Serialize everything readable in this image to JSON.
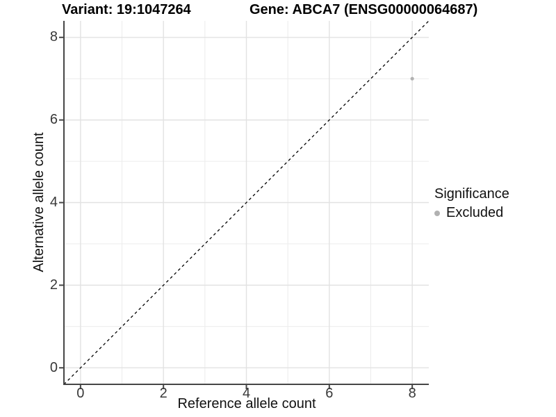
{
  "title": {
    "variant": "Variant: 19:1047264",
    "gene": "Gene: ABCA7 (ENSG00000064687)"
  },
  "x_axis": {
    "label": "Reference allele count",
    "tick_labels": [
      "0",
      "2",
      "4",
      "6",
      "8"
    ]
  },
  "y_axis": {
    "label": "Alternative allele count",
    "tick_labels": [
      "0",
      "2",
      "4",
      "6",
      "8"
    ]
  },
  "legend": {
    "title": "Significance",
    "items": [
      {
        "label": "Excluded",
        "marker": "circle-icon",
        "color": "#b1b1b1"
      }
    ]
  },
  "colors": {
    "background": "#ffffff",
    "grid_major": "#e2e2e2",
    "grid_minor": "#ececec",
    "axis": "#464646",
    "tick": "#464646",
    "point": "#b1b1b1",
    "dashed_line": "#000000"
  },
  "chart_data": {
    "type": "scatter",
    "title": "Variant: 19:1047264   Gene: ABCA7 (ENSG00000064687)",
    "xlabel": "Reference allele count",
    "ylabel": "Alternative allele count",
    "xlim": [
      -0.4,
      8.4
    ],
    "ylim": [
      -0.4,
      8.4
    ],
    "x_ticks": [
      0,
      2,
      4,
      6,
      8
    ],
    "y_ticks": [
      0,
      2,
      4,
      6,
      8
    ],
    "grid_major": [
      0,
      2,
      4,
      6,
      8
    ],
    "grid_minor": [
      1,
      3,
      5,
      7
    ],
    "grid": "on",
    "legend_position": "right",
    "series": [
      {
        "name": "Excluded",
        "color": "#b1b1b1",
        "points": [
          {
            "x": 8,
            "y": 7
          }
        ]
      }
    ],
    "identity_line": {
      "style": "dashed",
      "color": "#000000",
      "from": -0.4,
      "to": 8.4
    }
  }
}
